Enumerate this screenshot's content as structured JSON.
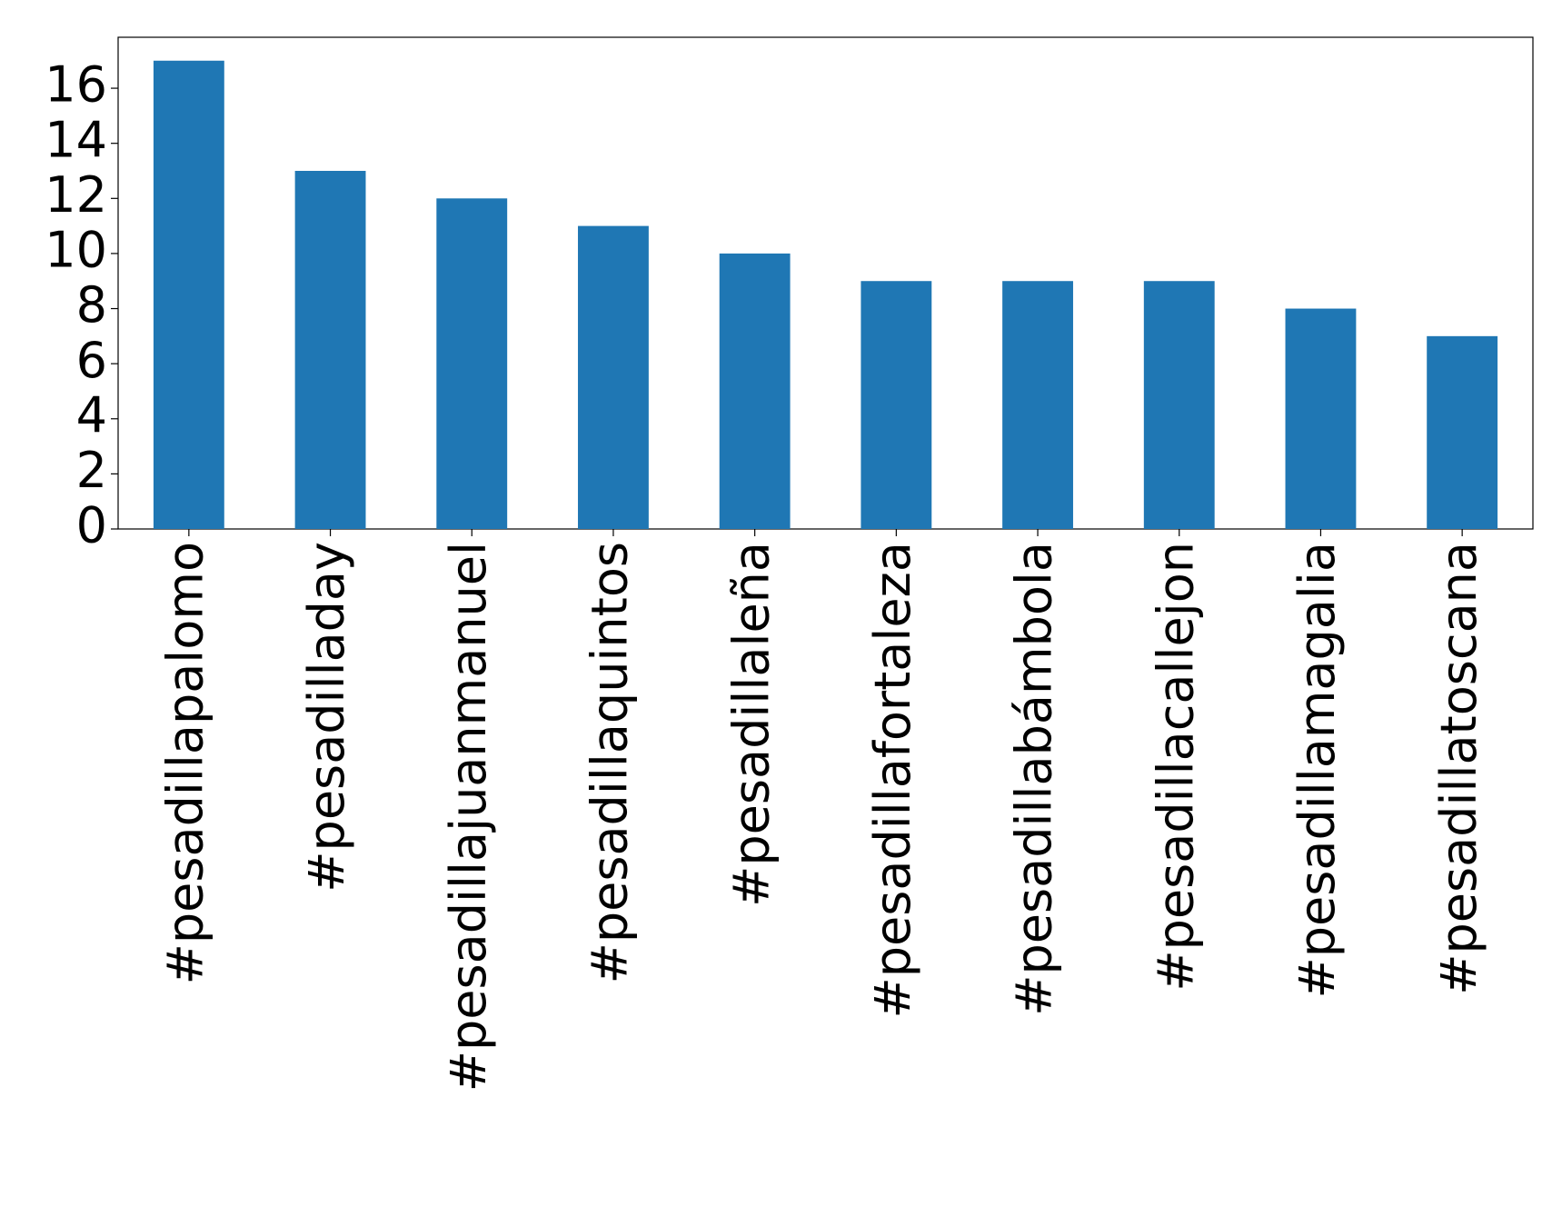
{
  "chart_data": {
    "type": "bar",
    "categories": [
      "#pesadillapalomo",
      "#pesadilladay",
      "#pesadillajuanmanuel",
      "#pesadillaquintos",
      "#pesadillaleña",
      "#pesadillafortaleza",
      "#pesadillabámbola",
      "#pesadillacallejon",
      "#pesadillamagalia",
      "#pesadillatoscana"
    ],
    "values": [
      17,
      13,
      12,
      11,
      10,
      9,
      9,
      9,
      8,
      7
    ],
    "color": "#1f77b4",
    "ylim": [
      0,
      17.85
    ],
    "yticks": [
      0,
      2,
      4,
      6,
      8,
      10,
      12,
      14,
      16
    ],
    "grid": false
  }
}
